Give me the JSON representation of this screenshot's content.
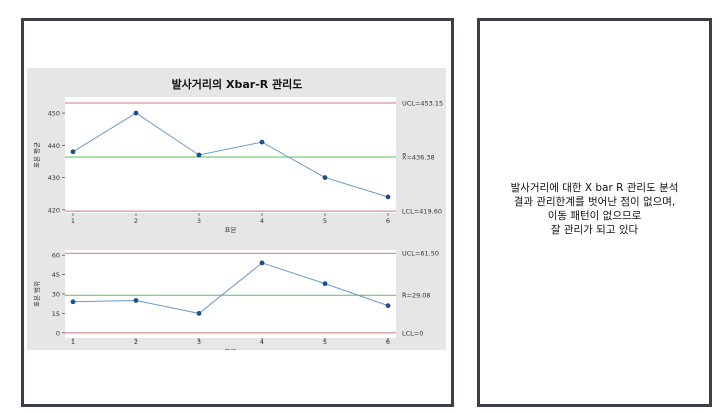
{
  "chart_data": {
    "type": "line",
    "title": "발사거리의 Xbar-R 관리도",
    "charts": [
      {
        "name": "xbar",
        "ylabel": "표본 평균",
        "xlabel": "표본",
        "x": [
          1,
          2,
          3,
          4,
          5,
          6
        ],
        "values": [
          438,
          450,
          437,
          441,
          430,
          424
        ],
        "ylim": [
          419,
          455
        ],
        "yticks": [
          420,
          430,
          440,
          450
        ],
        "ucl": 453.15,
        "center": 436.38,
        "lcl": 419.6,
        "ucl_label": "UCL=453.15",
        "center_label": "X̿=436.38",
        "lcl_label": "LCL=419.60"
      },
      {
        "name": "range",
        "ylabel": "표본 범위",
        "xlabel": "표본",
        "x": [
          1,
          2,
          3,
          4,
          5,
          6
        ],
        "values": [
          24,
          25,
          15,
          54,
          38,
          21
        ],
        "ylim": [
          -4,
          64
        ],
        "yticks": [
          0,
          15,
          30,
          45,
          60
        ],
        "ucl": 61.5,
        "center": 29.08,
        "lcl": 0,
        "ucl_label": "UCL=61.50",
        "center_label": "R̄=29.08",
        "lcl_label": "LCL=0"
      }
    ],
    "grid": false,
    "colors": {
      "series": "#6a9bcd",
      "marker": "#1f4e88",
      "limit": "#c87c7c",
      "center": "#5bbd5b",
      "background": "#e6e6e6"
    }
  },
  "conclusion": {
    "lines": [
      "발사거리에 대한 X bar R 관리도 분석",
      "결과 관리한계를 벗어난 점이 없으며,",
      "이동 패턴이 없으므로",
      "잘 관리가 되고 있다"
    ]
  }
}
